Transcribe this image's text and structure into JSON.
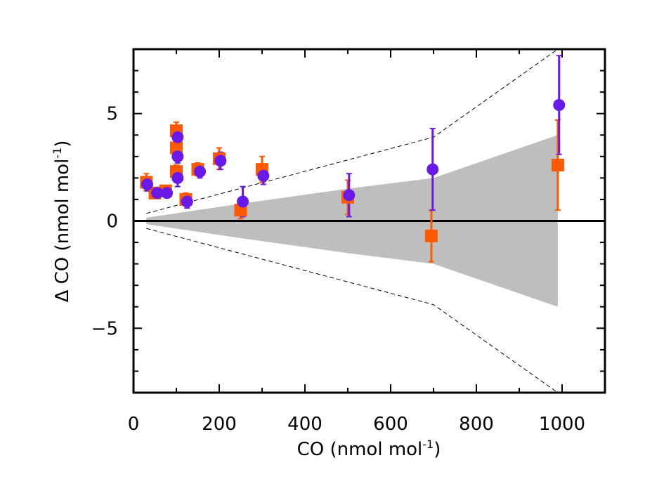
{
  "chart_data": {
    "type": "scatter",
    "title": "",
    "xlabel_main": "CO (nmol mol",
    "xlabel_sup": "-1",
    "xlabel_end": ")",
    "ylabel_main": "Δ CO (nmol mol",
    "ylabel_sup": "-1",
    "ylabel_end": ")",
    "xlim": [
      0,
      1100
    ],
    "ylim": [
      -8,
      8
    ],
    "x_ticks": [
      0,
      200,
      400,
      600,
      800,
      1000
    ],
    "x_tick_labels": [
      "0",
      "200",
      "400",
      "600",
      "800",
      "1000"
    ],
    "y_ticks": [
      -5,
      0,
      5
    ],
    "y_tick_labels": [
      "−5",
      "0",
      "5"
    ],
    "colors": {
      "square": "#ff5a00",
      "circle": "#6a1ae8",
      "band": "#bebebe",
      "dashed": "#000000"
    },
    "band": {
      "x": [
        30,
        250,
        500,
        700,
        990
      ],
      "upper": [
        0.15,
        0.8,
        1.5,
        2.0,
        4.0
      ],
      "lower": [
        -0.15,
        -0.8,
        -1.5,
        -2.0,
        -4.0
      ]
    },
    "dashed_envelope": {
      "x": [
        30,
        700,
        990
      ],
      "upper": [
        0.35,
        3.9,
        8.0
      ],
      "lower": [
        -0.35,
        -3.9,
        -8.0
      ]
    },
    "series": [
      {
        "name": "squares",
        "marker": "square",
        "points": [
          {
            "x": 30,
            "y": 1.8,
            "err": 0.4
          },
          {
            "x": 50,
            "y": 1.3,
            "err": 0.2
          },
          {
            "x": 75,
            "y": 1.4,
            "err": 0.2
          },
          {
            "x": 100,
            "y": 4.2,
            "err": 0.4
          },
          {
            "x": 100,
            "y": 3.4,
            "err": 0.3
          },
          {
            "x": 100,
            "y": 2.3,
            "err": 0.3
          },
          {
            "x": 122,
            "y": 1.0,
            "err": 0.3
          },
          {
            "x": 150,
            "y": 2.4,
            "err": 0.3
          },
          {
            "x": 200,
            "y": 2.9,
            "err": 0.5
          },
          {
            "x": 250,
            "y": 0.5,
            "err": 0.4
          },
          {
            "x": 300,
            "y": 2.4,
            "err": 0.6
          },
          {
            "x": 500,
            "y": 1.1,
            "err": 0.8
          },
          {
            "x": 695,
            "y": -0.7,
            "err": 1.2
          },
          {
            "x": 990,
            "y": 2.6,
            "err": 2.1
          }
        ]
      },
      {
        "name": "circles",
        "marker": "circle",
        "points": [
          {
            "x": 32,
            "y": 1.7,
            "err": 0.3
          },
          {
            "x": 55,
            "y": 1.3,
            "err": 0.2
          },
          {
            "x": 78,
            "y": 1.3,
            "err": 0.2
          },
          {
            "x": 103,
            "y": 3.9,
            "err": 0.3
          },
          {
            "x": 103,
            "y": 3.0,
            "err": 0.3
          },
          {
            "x": 103,
            "y": 2.0,
            "err": 0.4
          },
          {
            "x": 125,
            "y": 0.9,
            "err": 0.3
          },
          {
            "x": 155,
            "y": 2.3,
            "err": 0.3
          },
          {
            "x": 203,
            "y": 2.8,
            "err": 0.4
          },
          {
            "x": 255,
            "y": 0.9,
            "err": 0.7
          },
          {
            "x": 303,
            "y": 2.1,
            "err": 0.4
          },
          {
            "x": 503,
            "y": 1.2,
            "err": 1.0
          },
          {
            "x": 698,
            "y": 2.4,
            "err": 1.9
          },
          {
            "x": 993,
            "y": 5.4,
            "err": 2.3
          }
        ]
      }
    ]
  }
}
